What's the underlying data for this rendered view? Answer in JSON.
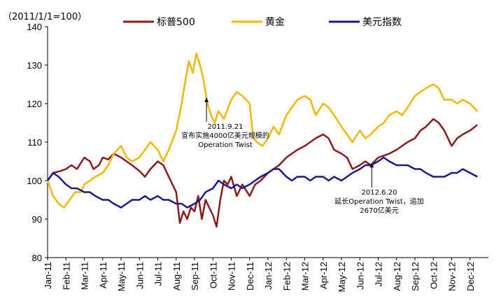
{
  "chart_data": {
    "type": "line",
    "unit_label": "（2011/1/1=100）",
    "ylim": [
      80,
      140
    ],
    "yticks": [
      80,
      90,
      100,
      110,
      120,
      130,
      140
    ],
    "x_tick_labels": [
      "Jan-11",
      "Feb-11",
      "Mar-11",
      "Apr-11",
      "May-11",
      "Jun-11",
      "Jul-11",
      "Aug-11",
      "Sep-11",
      "Oct-11",
      "Nov-11",
      "Dec-11",
      "Jan-12",
      "Feb-12",
      "Mar-12",
      "Apr-12",
      "May-12",
      "Jun-12",
      "Jul-12",
      "Aug-12",
      "Sep-12",
      "Oct-12",
      "Nov-12",
      "Dec-12"
    ],
    "x_tick_months": [
      0,
      1,
      2,
      3,
      4,
      5,
      6,
      7,
      8,
      9,
      10,
      11,
      12,
      13,
      14,
      15,
      16,
      17,
      18,
      19,
      20,
      21,
      22,
      23
    ],
    "x_range_months": [
      0,
      24
    ],
    "legend_position": "top",
    "series": [
      {
        "name": "标普500",
        "color": "#8b1a1a",
        "points": [
          [
            0,
            100
          ],
          [
            0.3,
            102
          ],
          [
            0.7,
            102.5
          ],
          [
            1,
            103
          ],
          [
            1.3,
            104
          ],
          [
            1.6,
            103
          ],
          [
            2,
            106
          ],
          [
            2.3,
            105
          ],
          [
            2.5,
            103
          ],
          [
            2.8,
            104
          ],
          [
            3,
            106
          ],
          [
            3.3,
            105.5
          ],
          [
            3.6,
            107
          ],
          [
            4,
            106
          ],
          [
            4.3,
            105
          ],
          [
            4.6,
            104
          ],
          [
            5,
            102.5
          ],
          [
            5.3,
            101
          ],
          [
            5.6,
            103
          ],
          [
            6,
            105
          ],
          [
            6.3,
            104
          ],
          [
            6.6,
            101
          ],
          [
            7,
            97
          ],
          [
            7.2,
            89
          ],
          [
            7.4,
            92
          ],
          [
            7.6,
            90
          ],
          [
            7.8,
            93
          ],
          [
            8,
            92
          ],
          [
            8.2,
            96
          ],
          [
            8.4,
            90
          ],
          [
            8.6,
            95
          ],
          [
            8.8,
            93
          ],
          [
            9,
            91
          ],
          [
            9.2,
            88
          ],
          [
            9.4,
            95
          ],
          [
            9.6,
            100
          ],
          [
            9.8,
            99
          ],
          [
            10,
            101
          ],
          [
            10.3,
            96
          ],
          [
            10.6,
            99
          ],
          [
            11,
            96
          ],
          [
            11.3,
            99
          ],
          [
            11.6,
            100
          ],
          [
            12,
            102
          ],
          [
            12.3,
            103
          ],
          [
            12.6,
            104
          ],
          [
            13,
            106
          ],
          [
            13.3,
            107
          ],
          [
            13.6,
            108
          ],
          [
            14,
            109
          ],
          [
            14.3,
            110
          ],
          [
            14.6,
            111
          ],
          [
            15,
            112
          ],
          [
            15.3,
            111
          ],
          [
            15.6,
            108
          ],
          [
            16,
            107
          ],
          [
            16.3,
            106
          ],
          [
            16.6,
            103
          ],
          [
            17,
            104
          ],
          [
            17.3,
            105
          ],
          [
            17.6,
            104
          ],
          [
            18,
            106
          ],
          [
            18.3,
            106.5
          ],
          [
            18.6,
            107
          ],
          [
            19,
            108
          ],
          [
            19.3,
            109
          ],
          [
            19.6,
            110
          ],
          [
            20,
            111
          ],
          [
            20.3,
            113
          ],
          [
            20.6,
            114
          ],
          [
            21,
            116
          ],
          [
            21.3,
            115
          ],
          [
            21.6,
            113
          ],
          [
            22,
            109
          ],
          [
            22.3,
            111
          ],
          [
            22.6,
            112
          ],
          [
            23,
            113
          ],
          [
            23.4,
            114.5
          ]
        ]
      },
      {
        "name": "黄金",
        "color": "#f2b800",
        "points": [
          [
            0,
            100
          ],
          [
            0.3,
            96
          ],
          [
            0.6,
            94
          ],
          [
            0.9,
            93
          ],
          [
            1.2,
            95
          ],
          [
            1.5,
            97
          ],
          [
            1.8,
            97
          ],
          [
            2,
            99
          ],
          [
            2.3,
            100
          ],
          [
            2.6,
            101
          ],
          [
            3,
            102
          ],
          [
            3.3,
            104
          ],
          [
            3.6,
            107
          ],
          [
            4,
            109
          ],
          [
            4.3,
            106
          ],
          [
            4.6,
            105
          ],
          [
            5,
            106
          ],
          [
            5.3,
            108
          ],
          [
            5.6,
            110
          ],
          [
            6,
            108
          ],
          [
            6.3,
            105
          ],
          [
            6.6,
            108
          ],
          [
            7,
            113
          ],
          [
            7.3,
            120
          ],
          [
            7.5,
            126
          ],
          [
            7.7,
            131
          ],
          [
            7.9,
            128
          ],
          [
            8.1,
            133
          ],
          [
            8.3,
            130
          ],
          [
            8.5,
            126
          ],
          [
            8.7,
            120
          ],
          [
            8.9,
            117
          ],
          [
            9.1,
            115
          ],
          [
            9.3,
            118
          ],
          [
            9.6,
            116
          ],
          [
            10,
            121
          ],
          [
            10.3,
            123
          ],
          [
            10.6,
            122
          ],
          [
            11,
            120
          ],
          [
            11.2,
            111
          ],
          [
            11.4,
            110
          ],
          [
            11.7,
            109
          ],
          [
            12,
            111
          ],
          [
            12.3,
            114
          ],
          [
            12.6,
            112
          ],
          [
            13,
            117
          ],
          [
            13.3,
            119
          ],
          [
            13.6,
            121
          ],
          [
            14,
            122
          ],
          [
            14.3,
            121
          ],
          [
            14.6,
            117
          ],
          [
            15,
            120
          ],
          [
            15.3,
            119
          ],
          [
            15.6,
            117
          ],
          [
            16,
            114
          ],
          [
            16.3,
            112
          ],
          [
            16.6,
            110
          ],
          [
            17,
            113
          ],
          [
            17.3,
            111
          ],
          [
            17.6,
            112
          ],
          [
            18,
            114
          ],
          [
            18.3,
            115
          ],
          [
            18.6,
            117
          ],
          [
            19,
            118
          ],
          [
            19.3,
            117
          ],
          [
            19.6,
            119
          ],
          [
            20,
            122
          ],
          [
            20.3,
            123
          ],
          [
            20.6,
            124
          ],
          [
            21,
            125
          ],
          [
            21.3,
            124
          ],
          [
            21.6,
            121
          ],
          [
            22,
            121
          ],
          [
            22.3,
            120
          ],
          [
            22.6,
            121
          ],
          [
            23,
            120
          ],
          [
            23.4,
            118
          ]
        ]
      },
      {
        "name": "美元指数",
        "color": "#1a1a8c",
        "points": [
          [
            0,
            100
          ],
          [
            0.3,
            102
          ],
          [
            0.6,
            101
          ],
          [
            1,
            99
          ],
          [
            1.3,
            98
          ],
          [
            1.6,
            98
          ],
          [
            2,
            97
          ],
          [
            2.3,
            97
          ],
          [
            2.6,
            96
          ],
          [
            3,
            95
          ],
          [
            3.3,
            95
          ],
          [
            3.6,
            94
          ],
          [
            4,
            93
          ],
          [
            4.3,
            94
          ],
          [
            4.6,
            95
          ],
          [
            5,
            95
          ],
          [
            5.3,
            96
          ],
          [
            5.6,
            95
          ],
          [
            6,
            96
          ],
          [
            6.3,
            95
          ],
          [
            6.6,
            95
          ],
          [
            7,
            94
          ],
          [
            7.3,
            94
          ],
          [
            7.6,
            93
          ],
          [
            8,
            94
          ],
          [
            8.3,
            95
          ],
          [
            8.6,
            97
          ],
          [
            9,
            98
          ],
          [
            9.3,
            100
          ],
          [
            9.6,
            99
          ],
          [
            10,
            98
          ],
          [
            10.3,
            99
          ],
          [
            10.6,
            98
          ],
          [
            11,
            99
          ],
          [
            11.3,
            100
          ],
          [
            11.6,
            101
          ],
          [
            12,
            102
          ],
          [
            12.3,
            103
          ],
          [
            12.6,
            103
          ],
          [
            13,
            101
          ],
          [
            13.3,
            100
          ],
          [
            13.6,
            101
          ],
          [
            14,
            101
          ],
          [
            14.3,
            100
          ],
          [
            14.6,
            101
          ],
          [
            15,
            101
          ],
          [
            15.3,
            100
          ],
          [
            15.6,
            101
          ],
          [
            16,
            100
          ],
          [
            16.3,
            101
          ],
          [
            16.6,
            102
          ],
          [
            17,
            103
          ],
          [
            17.3,
            104
          ],
          [
            17.6,
            104
          ],
          [
            18,
            105
          ],
          [
            18.3,
            106
          ],
          [
            18.6,
            105
          ],
          [
            19,
            104
          ],
          [
            19.3,
            104
          ],
          [
            19.6,
            104
          ],
          [
            20,
            103
          ],
          [
            20.3,
            103
          ],
          [
            20.6,
            102
          ],
          [
            21,
            101
          ],
          [
            21.3,
            101
          ],
          [
            21.6,
            101
          ],
          [
            22,
            102
          ],
          [
            22.3,
            102
          ],
          [
            22.6,
            103
          ],
          [
            23,
            102
          ],
          [
            23.4,
            101
          ]
        ]
      }
    ],
    "annotations": [
      {
        "lines": [
          "2011.9.21",
          "宣布实施4000亿美元规模的",
          "Operation Twist"
        ],
        "arrow_month": 8.65,
        "arrow_y": 121.5,
        "text_above": false
      },
      {
        "lines": [
          "2012.6.20",
          "延长Operation Twist，追加",
          "2670亿美元"
        ],
        "arrow_month": 17.65,
        "arrow_y": 104.5,
        "text_above": false
      }
    ]
  }
}
